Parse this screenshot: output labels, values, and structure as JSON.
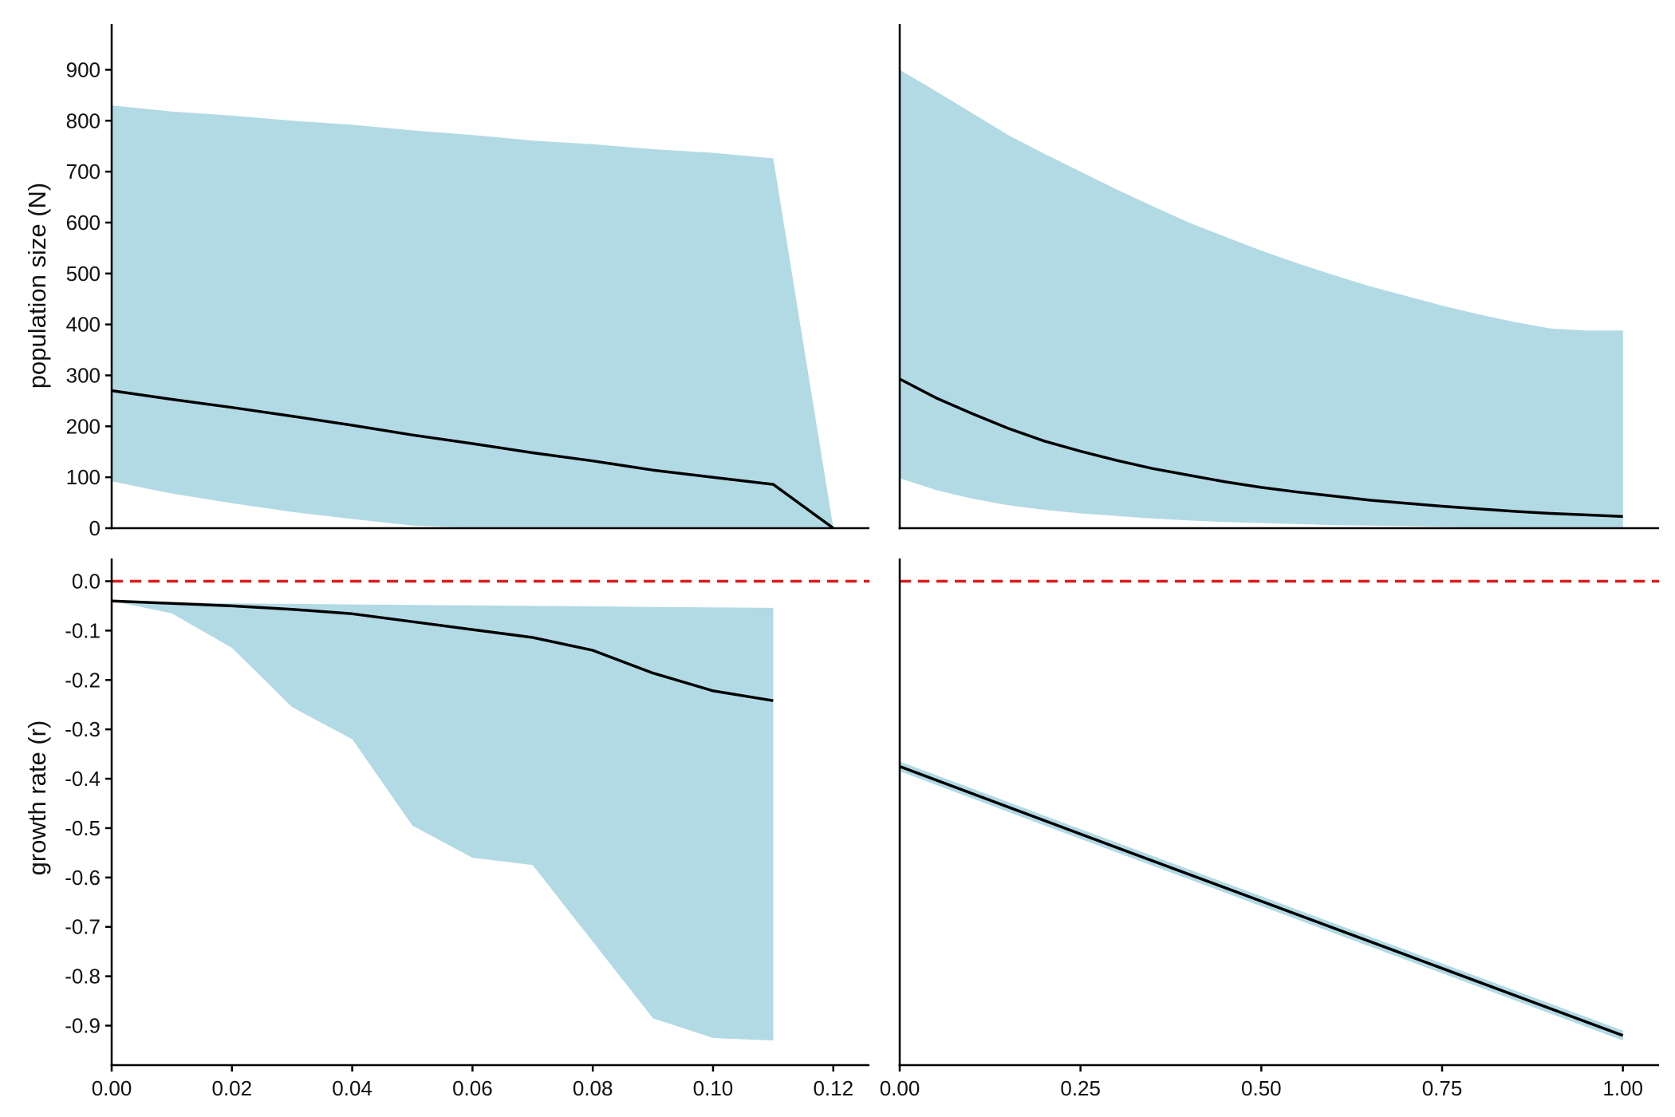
{
  "colors": {
    "ribbon": "#b2dae5",
    "line": "#000000",
    "reference": "#e01a1a",
    "axis": "#000000"
  },
  "ylabels": {
    "top": "population size (N)",
    "bottom": "growth rate (r)"
  },
  "chart_data": [
    {
      "panel": "top-left",
      "type": "area",
      "ylabel": "population size (N)",
      "xlim": [
        0,
        0.126
      ],
      "ylim": [
        0,
        990
      ],
      "xticks": [],
      "xtick_labels": [],
      "yticks": [
        0,
        100,
        200,
        300,
        400,
        500,
        600,
        700,
        800,
        900
      ],
      "ytick_labels": [
        "0",
        "100",
        "200",
        "300",
        "400",
        "500",
        "600",
        "700",
        "800",
        "900"
      ],
      "x": [
        0,
        0.01,
        0.02,
        0.03,
        0.04,
        0.05,
        0.06,
        0.07,
        0.08,
        0.09,
        0.1,
        0.11,
        0.12
      ],
      "mean": [
        270,
        253,
        237,
        220,
        202,
        183,
        166,
        148,
        132,
        114,
        100,
        86,
        0
      ],
      "lower": [
        92,
        68,
        49,
        32,
        18,
        5,
        1,
        0,
        0,
        0,
        0,
        0,
        0
      ],
      "upper": [
        830,
        818,
        810,
        800,
        792,
        781,
        772,
        761,
        754,
        744,
        737,
        726,
        0
      ]
    },
    {
      "panel": "top-right",
      "type": "area",
      "xlim": [
        0,
        1.05
      ],
      "ylim": [
        0,
        990
      ],
      "xticks": [],
      "xtick_labels": [],
      "yticks": [],
      "ytick_labels": [],
      "x": [
        0,
        0.05,
        0.1,
        0.15,
        0.2,
        0.25,
        0.3,
        0.35,
        0.4,
        0.45,
        0.5,
        0.55,
        0.6,
        0.65,
        0.7,
        0.75,
        0.8,
        0.85,
        0.9,
        0.95,
        1.0
      ],
      "mean": [
        293,
        256,
        225,
        196,
        171,
        151,
        133,
        117,
        104,
        91,
        80,
        71,
        63,
        55,
        49,
        43,
        38,
        33,
        29,
        26,
        23
      ],
      "lower": [
        98,
        75,
        58,
        45,
        36,
        29,
        24,
        19,
        15,
        12,
        10,
        8,
        6,
        5,
        4,
        3,
        2,
        2,
        1,
        1,
        1
      ],
      "upper": [
        900,
        858,
        815,
        772,
        735,
        700,
        665,
        632,
        600,
        572,
        545,
        520,
        497,
        475,
        456,
        437,
        420,
        405,
        392,
        388,
        388
      ]
    },
    {
      "panel": "bottom-left",
      "type": "area",
      "ylabel": "growth rate (r)",
      "xlim": [
        0,
        0.126
      ],
      "ylim": [
        -0.98,
        0.046
      ],
      "xticks": [
        0,
        0.02,
        0.04,
        0.06,
        0.08,
        0.1,
        0.12
      ],
      "xtick_labels": [
        "0.00",
        "0.02",
        "0.04",
        "0.06",
        "0.08",
        "0.10",
        "0.12"
      ],
      "yticks": [
        0,
        -0.1,
        -0.2,
        -0.3,
        -0.4,
        -0.5,
        -0.6,
        -0.7,
        -0.8,
        -0.9
      ],
      "ytick_labels": [
        "0.0",
        "-0.1",
        "-0.2",
        "-0.3",
        "-0.4",
        "-0.5",
        "-0.6",
        "-0.7",
        "-0.8",
        "-0.9"
      ],
      "reference_line": 0,
      "x": [
        0,
        0.01,
        0.02,
        0.03,
        0.04,
        0.05,
        0.06,
        0.07,
        0.08,
        0.09,
        0.1,
        0.11
      ],
      "mean": [
        -0.04,
        -0.045,
        -0.05,
        -0.057,
        -0.066,
        -0.082,
        -0.098,
        -0.114,
        -0.14,
        -0.186,
        -0.222,
        -0.242
      ],
      "lower": [
        -0.04,
        -0.065,
        -0.135,
        -0.255,
        -0.32,
        -0.495,
        -0.56,
        -0.575,
        -0.73,
        -0.885,
        -0.925,
        -0.93
      ],
      "upper": [
        -0.04,
        -0.043,
        -0.045,
        -0.046,
        -0.047,
        -0.048,
        -0.049,
        -0.05,
        -0.051,
        -0.052,
        -0.053,
        -0.054
      ]
    },
    {
      "panel": "bottom-right",
      "type": "area",
      "xlim": [
        0,
        1.05
      ],
      "ylim": [
        -0.98,
        0.046
      ],
      "xticks": [
        0,
        0.25,
        0.5,
        0.75,
        1.0
      ],
      "xtick_labels": [
        "0.00",
        "0.25",
        "0.50",
        "0.75",
        "1.00"
      ],
      "yticks": [],
      "ytick_labels": [],
      "reference_line": 0,
      "x": [
        0,
        0.25,
        0.5,
        0.75,
        1.0
      ],
      "mean": [
        -0.375,
        -0.512,
        -0.648,
        -0.784,
        -0.92
      ],
      "lower": [
        -0.385,
        -0.522,
        -0.658,
        -0.794,
        -0.93
      ],
      "upper": [
        -0.365,
        -0.502,
        -0.638,
        -0.774,
        -0.91
      ]
    }
  ]
}
